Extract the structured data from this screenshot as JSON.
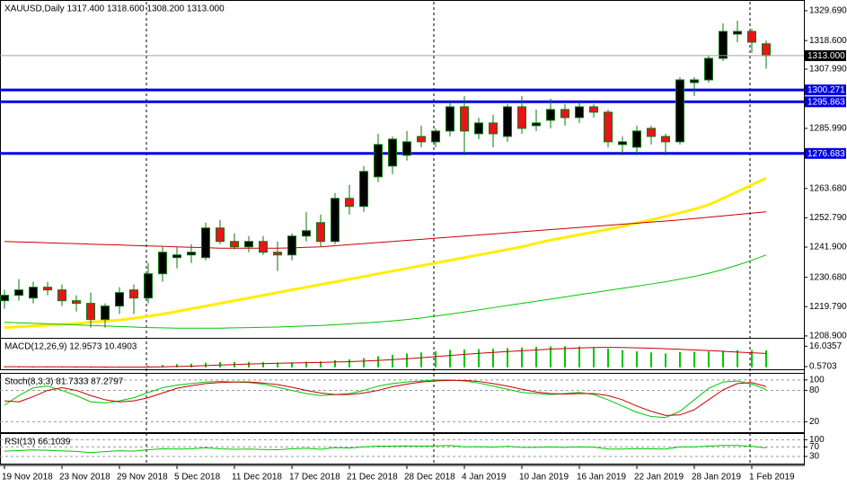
{
  "chart_data": [
    {
      "type": "candlestick",
      "title": "XAUUSD,Daily  1317.400 1318.600 1308.200 1313.000",
      "categories": [
        "19 Nov 2018",
        null,
        null,
        null,
        "23 Nov 2018",
        null,
        null,
        null,
        "29 Nov 2018",
        null,
        null,
        null,
        "5 Dec 2018",
        null,
        null,
        null,
        "11 Dec 2018",
        null,
        null,
        null,
        "17 Dec 2018",
        null,
        null,
        null,
        "21 Dec 2018",
        null,
        null,
        null,
        "28 Dec 2018",
        null,
        null,
        null,
        "4 Jan 2019",
        null,
        null,
        null,
        "10 Jan 2019",
        null,
        null,
        null,
        "16 Jan 2019",
        null,
        null,
        null,
        "22 Jan 2019",
        null,
        null,
        null,
        "28 Jan 2019",
        null,
        null,
        null,
        "1 Feb 2019",
        null
      ],
      "open": [
        1222,
        1224,
        1223,
        1227,
        1226,
        1222,
        1221,
        1215,
        1220,
        1226,
        1223,
        1232,
        1238,
        1239,
        1238,
        1249,
        1244,
        1242,
        1244,
        1240,
        1239,
        1246,
        1251,
        1244,
        1260,
        1257,
        1268,
        1272,
        1276,
        1283,
        1281,
        1285,
        1294,
        1284,
        1288,
        1283,
        1294,
        1287,
        1289,
        1293,
        1290,
        1294,
        1292,
        1280,
        1279,
        1286,
        1283,
        1281,
        1303,
        1304,
        1312,
        1321,
        1322,
        1317.4
      ],
      "high": [
        1226,
        1230,
        1229,
        1229,
        1228,
        1224,
        1225,
        1221,
        1227,
        1228,
        1236,
        1242,
        1242,
        1243,
        1251,
        1252,
        1247,
        1246,
        1246,
        1244,
        1247,
        1255,
        1254,
        1262,
        1265,
        1272,
        1284,
        1283,
        1285,
        1287,
        1286,
        1296,
        1298,
        1290,
        1291,
        1295,
        1298,
        1293,
        1297,
        1295,
        1296,
        1295,
        1293,
        1283,
        1287,
        1287,
        1284,
        1305,
        1305,
        1313,
        1325,
        1326,
        1323,
        1318.6
      ],
      "low": [
        1219,
        1222,
        1221,
        1224,
        1220,
        1218,
        1212,
        1212,
        1217,
        1217,
        1221,
        1229,
        1234,
        1236,
        1237,
        1243,
        1241,
        1240,
        1239,
        1233,
        1237,
        1244,
        1242,
        1243,
        1254,
        1255,
        1266,
        1269,
        1274,
        1279,
        1279,
        1283,
        1276,
        1282,
        1279,
        1281,
        1284,
        1285,
        1286,
        1287,
        1288,
        1290,
        1279,
        1276,
        1276,
        1280,
        1276,
        1280,
        1298,
        1303,
        1311,
        1318,
        1314,
        1308.2
      ],
      "close": [
        1224,
        1226,
        1227,
        1226,
        1222,
        1221,
        1215,
        1220,
        1225,
        1223,
        1232,
        1240,
        1239,
        1240,
        1249,
        1244,
        1242,
        1244,
        1240,
        1239,
        1246,
        1248,
        1244,
        1260,
        1257,
        1270,
        1280,
        1282,
        1281,
        1281,
        1285,
        1294,
        1285,
        1288,
        1284,
        1294,
        1286,
        1288,
        1293,
        1290,
        1294,
        1292,
        1281,
        1281,
        1285,
        1283,
        1281,
        1304,
        1304,
        1312,
        1322,
        1322,
        1318,
        1313
      ],
      "up_color": "#000000",
      "down_color": "#e8141c",
      "outline_color": "#0a7a0a",
      "series": [
        {
          "color": "#ffee00",
          "width": 3,
          "values": [
            1212,
            1212.3,
            1212.6,
            1212.9,
            1213.2,
            1213.5,
            1214,
            1214.4,
            1214.8,
            1215.5,
            1216.2,
            1217,
            1218,
            1219,
            1220,
            1221,
            1222,
            1223,
            1224,
            1225,
            1226,
            1227,
            1228,
            1229,
            1230,
            1231,
            1232,
            1233,
            1234,
            1235,
            1236,
            1237,
            1238,
            1239,
            1240,
            1241,
            1242,
            1243.3,
            1244.5,
            1245.5,
            1246.5,
            1247.5,
            1248.5,
            1249.6,
            1250.8,
            1252,
            1253.3,
            1254.6,
            1256,
            1257.6,
            1260,
            1262.5,
            1265,
            1267.5
          ]
        },
        {
          "color": "#c80000",
          "width": 1,
          "values": [
            1244,
            1243.8,
            1243.7,
            1243.5,
            1243.3,
            1243.2,
            1243,
            1242.8,
            1242.7,
            1242.5,
            1242.3,
            1242.2,
            1242,
            1241.8,
            1241.7,
            1241.5,
            1241.5,
            1241.5,
            1241.5,
            1241.5,
            1241.6,
            1241.8,
            1242,
            1242.4,
            1242.8,
            1243.2,
            1243.6,
            1244,
            1244.4,
            1244.8,
            1245.2,
            1245.6,
            1246,
            1246.4,
            1246.8,
            1247.2,
            1247.6,
            1248,
            1248.4,
            1248.8,
            1249.2,
            1249.6,
            1250,
            1250.4,
            1250.8,
            1251.2,
            1251.6,
            1252,
            1252.5,
            1253,
            1253.5,
            1254,
            1254.5,
            1255
          ]
        },
        {
          "color": "#00c800",
          "width": 1,
          "values": [
            1214,
            1213.8,
            1213.6,
            1213.4,
            1213.2,
            1213,
            1212.8,
            1212.6,
            1212.4,
            1212.2,
            1212,
            1211.9,
            1211.8,
            1211.8,
            1211.8,
            1211.8,
            1211.9,
            1212,
            1212.1,
            1212.2,
            1212.4,
            1212.6,
            1212.8,
            1213.1,
            1213.4,
            1213.7,
            1214.1,
            1214.5,
            1215,
            1215.6,
            1216.3,
            1217,
            1217.8,
            1218.6,
            1219.4,
            1220.2,
            1221,
            1221.8,
            1222.6,
            1223.4,
            1224.2,
            1225,
            1225.8,
            1226.6,
            1227.4,
            1228.2,
            1229,
            1230,
            1231,
            1232.2,
            1233.6,
            1235.2,
            1237,
            1239
          ]
        }
      ],
      "hlines": [
        {
          "value": 1300.271,
          "color": "#0000e0"
        },
        {
          "value": 1295.863,
          "color": "#0000e0"
        },
        {
          "value": 1276.683,
          "color": "#0000e0"
        }
      ],
      "last_price": {
        "value": 1313,
        "label": "1313.000"
      },
      "ylim": [
        1208.2,
        1333.0
      ],
      "yticks": [
        {
          "value": 1329.69,
          "label": "1329.690"
        },
        {
          "value": 1318.6,
          "label": "1318.600"
        },
        {
          "value": 1307.99,
          "label": "1307.990"
        },
        {
          "value": 1285.99,
          "label": "1285.990"
        },
        {
          "value": 1263.68,
          "label": "1263.680"
        },
        {
          "value": 1252.79,
          "label": "1252.790"
        },
        {
          "value": 1241.9,
          "label": "1241.900"
        },
        {
          "value": 1230.68,
          "label": "1230.680"
        },
        {
          "value": 1219.79,
          "label": "1219.790"
        },
        {
          "value": 1208.9,
          "label": "1208.900"
        }
      ],
      "grid": false
    },
    {
      "type": "bar",
      "title": "MACD(12,26,9) 12.9573 10.4903",
      "series": [
        {
          "style": "bar",
          "color": "#00c800",
          "values": [
            0.2,
            0.3,
            0.2,
            0.3,
            0.2,
            0.1,
            -0.2,
            -0.3,
            -0.1,
            0.1,
            1.0,
            1.8,
            2.4,
            2.8,
            3.5,
            3.9,
            4.0,
            4.1,
            3.9,
            3.6,
            3.8,
            4.3,
            4.5,
            5.4,
            6.0,
            7.0,
            8.4,
            9.5,
            10.5,
            11.3,
            12.1,
            13.2,
            13.5,
            13.8,
            14.0,
            14.6,
            15.0,
            15.5,
            15.9,
            16.0,
            15.8,
            15.3,
            14.2,
            13.0,
            12.1,
            11.3,
            10.5,
            11.6,
            11.8,
            12.1,
            12.6,
            13.0,
            13.1,
            12.9573
          ]
        },
        {
          "style": "line",
          "color": "#c80000",
          "values": [
            0.5,
            0.5,
            0.4,
            0.4,
            0.4,
            0.3,
            0.3,
            0.2,
            0.1,
            0.1,
            0.2,
            0.4,
            0.6,
            0.9,
            1.3,
            1.7,
            2.1,
            2.5,
            2.8,
            3.1,
            3.3,
            3.5,
            3.7,
            4.0,
            4.3,
            4.7,
            5.2,
            5.8,
            6.5,
            7.3,
            8.1,
            9.0,
            9.8,
            10.6,
            11.3,
            12.0,
            12.6,
            13.2,
            13.8,
            14.3,
            14.7,
            15.0,
            15.1,
            15.0,
            14.8,
            14.5,
            14.1,
            13.7,
            13.2,
            12.7,
            12.1,
            11.5,
            11.0,
            10.4903
          ]
        }
      ],
      "ylim": [
        -1.5,
        21
      ],
      "yticks": [
        16.0357,
        0.5703
      ],
      "grid": false
    },
    {
      "type": "line",
      "title": "Stoch(8,3,3) 81.7333 87.2797",
      "series": [
        {
          "color": "#00c800",
          "values": [
            52,
            70,
            85,
            88,
            80,
            70,
            58,
            56,
            60,
            66,
            76,
            85,
            90,
            93,
            96,
            97,
            96,
            95,
            92,
            86,
            80,
            74,
            70,
            72,
            74,
            80,
            88,
            93,
            96,
            98,
            100,
            100,
            98,
            94,
            88,
            82,
            76,
            74,
            72,
            74,
            76,
            72,
            62,
            50,
            38,
            30,
            28,
            40,
            62,
            84,
            96,
            98,
            92,
            81.7333
          ]
        },
        {
          "color": "#c80000",
          "values": [
            60,
            58,
            68,
            80,
            85,
            80,
            70,
            62,
            58,
            60,
            66,
            75,
            84,
            89,
            93,
            95,
            96,
            96,
            94,
            91,
            86,
            80,
            75,
            72,
            72,
            75,
            80,
            87,
            92,
            96,
            98,
            99,
            99,
            97,
            93,
            88,
            82,
            77,
            74,
            73,
            74,
            74,
            70,
            62,
            50,
            40,
            32,
            33,
            43,
            62,
            81,
            93,
            95,
            87.2797
          ]
        }
      ],
      "ylim": [
        0,
        110
      ],
      "yticks": [
        100,
        80,
        20
      ],
      "grid": true
    },
    {
      "type": "line",
      "title": "RSI(13) 66.1039",
      "series": [
        {
          "color": "#00c800",
          "values": [
            52,
            55,
            57,
            56,
            53,
            51,
            46,
            50,
            54,
            52,
            58,
            62,
            61,
            62,
            66,
            62,
            60,
            61,
            59,
            58,
            62,
            64,
            60,
            67,
            65,
            70,
            73,
            73,
            74,
            73,
            74,
            76,
            70,
            71,
            69,
            72,
            68,
            68,
            70,
            68,
            70,
            69,
            61,
            61,
            63,
            62,
            61,
            70,
            70,
            73,
            76,
            76,
            72,
            66.1039
          ]
        }
      ],
      "ylim": [
        0,
        120
      ],
      "yticks": [
        100,
        70,
        30
      ],
      "grid": true
    }
  ]
}
